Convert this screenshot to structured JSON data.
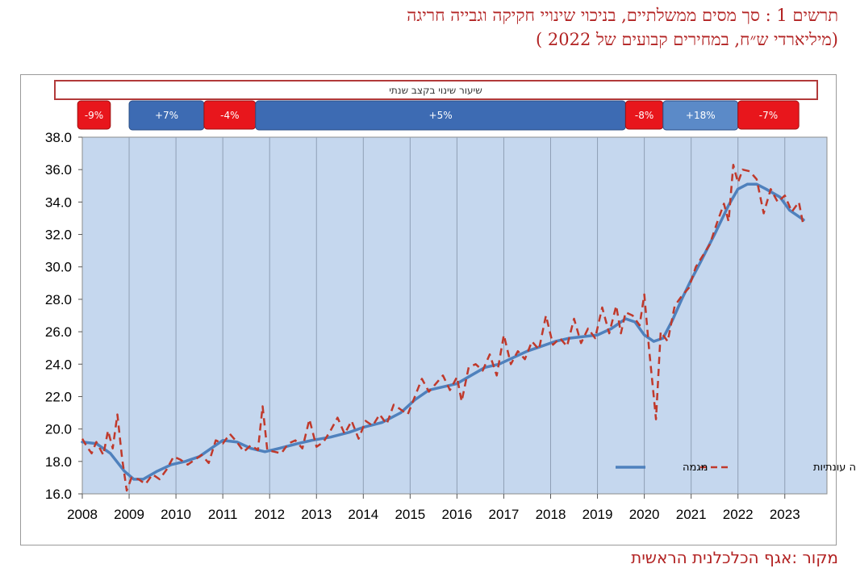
{
  "title_line1": "תרשים 1 : סך מסים ממשלתיים, בניכוי שינויי חקיקה וגבייה חריגה",
  "title_line2": "(מיליארדי ש״ח, במחירים קבועים של 2022 )",
  "source_text": "מקור :אגף הכלכלנית הראשית",
  "colors": {
    "plot_bg": "#c5d7ee",
    "trend": "#4f81bd",
    "seasonal": "#c0392b",
    "neg_box": "#e8161c",
    "pos_box": "#3d6bb3",
    "pos_box_light": "#5b8ac8",
    "title": "#b22222"
  },
  "chart_data": {
    "type": "line",
    "title": "",
    "xlabel": "",
    "ylabel": "",
    "ylim": [
      16.0,
      38.0
    ],
    "xlim": [
      2008,
      2023.9
    ],
    "x_ticks": [
      "2008",
      "2009",
      "2010",
      "2011",
      "2012",
      "2013",
      "2014",
      "2015",
      "2016",
      "2017",
      "2018",
      "2019",
      "2020",
      "2021",
      "2022",
      "2023"
    ],
    "y_ticks": [
      "16.0",
      "18.0",
      "20.0",
      "22.0",
      "24.0",
      "26.0",
      "28.0",
      "30.0",
      "32.0",
      "34.0",
      "36.0",
      "38.0"
    ],
    "grid": "vertical",
    "legend_position": "bottom-right",
    "legend": [
      {
        "name": "מנוכה עונתיות",
        "style": "dashed"
      },
      {
        "name": "מגמה",
        "style": "solid"
      }
    ],
    "band_title": "שיעור שינוי בקצב שנתי",
    "growth_bands": [
      {
        "label": "-9%",
        "start": 2007.9,
        "end": 2008.6,
        "sign": "neg"
      },
      {
        "label": "+7%",
        "start": 2009.0,
        "end": 2010.6,
        "sign": "pos"
      },
      {
        "label": "-4%",
        "start": 2010.6,
        "end": 2011.7,
        "sign": "neg"
      },
      {
        "label": "+5%",
        "start": 2011.7,
        "end": 2019.6,
        "sign": "pos"
      },
      {
        "label": "-8%",
        "start": 2019.6,
        "end": 2020.4,
        "sign": "neg"
      },
      {
        "label": "+18%",
        "start": 2020.4,
        "end": 2022.0,
        "sign": "pos_light"
      },
      {
        "label": "-7%",
        "start": 2022.0,
        "end": 2023.3,
        "sign": "neg"
      }
    ],
    "series": [
      {
        "name": "מגמה",
        "points": [
          [
            2008.0,
            19.2
          ],
          [
            2008.3,
            19.1
          ],
          [
            2008.6,
            18.5
          ],
          [
            2008.9,
            17.4
          ],
          [
            2009.1,
            16.9
          ],
          [
            2009.3,
            16.9
          ],
          [
            2009.6,
            17.4
          ],
          [
            2009.9,
            17.8
          ],
          [
            2010.2,
            18.0
          ],
          [
            2010.5,
            18.3
          ],
          [
            2010.8,
            18.9
          ],
          [
            2011.0,
            19.3
          ],
          [
            2011.3,
            19.2
          ],
          [
            2011.6,
            18.8
          ],
          [
            2011.9,
            18.6
          ],
          [
            2012.2,
            18.8
          ],
          [
            2012.6,
            19.1
          ],
          [
            2012.9,
            19.3
          ],
          [
            2013.3,
            19.5
          ],
          [
            2013.7,
            19.8
          ],
          [
            2014.0,
            20.1
          ],
          [
            2014.4,
            20.4
          ],
          [
            2014.8,
            21.0
          ],
          [
            2015.1,
            21.8
          ],
          [
            2015.4,
            22.4
          ],
          [
            2015.7,
            22.6
          ],
          [
            2016.0,
            22.8
          ],
          [
            2016.3,
            23.3
          ],
          [
            2016.6,
            23.8
          ],
          [
            2016.9,
            24.0
          ],
          [
            2017.2,
            24.4
          ],
          [
            2017.5,
            24.8
          ],
          [
            2017.8,
            25.1
          ],
          [
            2018.1,
            25.4
          ],
          [
            2018.4,
            25.6
          ],
          [
            2018.7,
            25.7
          ],
          [
            2019.0,
            25.8
          ],
          [
            2019.3,
            26.2
          ],
          [
            2019.6,
            26.8
          ],
          [
            2019.8,
            26.6
          ],
          [
            2020.0,
            25.8
          ],
          [
            2020.2,
            25.4
          ],
          [
            2020.4,
            25.6
          ],
          [
            2020.6,
            26.7
          ],
          [
            2020.8,
            28.0
          ],
          [
            2021.0,
            29.2
          ],
          [
            2021.2,
            30.3
          ],
          [
            2021.5,
            32.0
          ],
          [
            2021.8,
            33.8
          ],
          [
            2022.0,
            34.8
          ],
          [
            2022.2,
            35.1
          ],
          [
            2022.4,
            35.1
          ],
          [
            2022.6,
            34.8
          ],
          [
            2022.9,
            34.3
          ],
          [
            2023.1,
            33.5
          ],
          [
            2023.3,
            33.1
          ],
          [
            2023.4,
            32.9
          ]
        ]
      },
      {
        "name": "מנוכה עונתיות",
        "points": [
          [
            2008.0,
            19.4
          ],
          [
            2008.1,
            18.9
          ],
          [
            2008.2,
            18.5
          ],
          [
            2008.3,
            19.2
          ],
          [
            2008.45,
            18.4
          ],
          [
            2008.55,
            19.9
          ],
          [
            2008.65,
            18.8
          ],
          [
            2008.75,
            20.9
          ],
          [
            2008.85,
            18.2
          ],
          [
            2008.95,
            16.2
          ],
          [
            2009.05,
            17.0
          ],
          [
            2009.2,
            16.9
          ],
          [
            2009.35,
            16.6
          ],
          [
            2009.5,
            17.2
          ],
          [
            2009.65,
            16.9
          ],
          [
            2009.8,
            17.5
          ],
          [
            2009.95,
            18.3
          ],
          [
            2010.1,
            18.1
          ],
          [
            2010.25,
            17.8
          ],
          [
            2010.4,
            18.1
          ],
          [
            2010.55,
            18.4
          ],
          [
            2010.7,
            17.9
          ],
          [
            2010.85,
            19.3
          ],
          [
            2011.0,
            19.1
          ],
          [
            2011.15,
            19.7
          ],
          [
            2011.3,
            19.2
          ],
          [
            2011.45,
            18.6
          ],
          [
            2011.6,
            19.0
          ],
          [
            2011.75,
            18.7
          ],
          [
            2011.85,
            21.4
          ],
          [
            2011.95,
            18.7
          ],
          [
            2012.1,
            18.6
          ],
          [
            2012.25,
            18.5
          ],
          [
            2012.4,
            19.1
          ],
          [
            2012.55,
            19.3
          ],
          [
            2012.7,
            18.8
          ],
          [
            2012.85,
            20.6
          ],
          [
            2013.0,
            18.9
          ],
          [
            2013.15,
            19.2
          ],
          [
            2013.3,
            19.9
          ],
          [
            2013.45,
            20.7
          ],
          [
            2013.6,
            19.7
          ],
          [
            2013.75,
            20.5
          ],
          [
            2013.9,
            19.4
          ],
          [
            2014.05,
            20.5
          ],
          [
            2014.2,
            20.2
          ],
          [
            2014.35,
            20.9
          ],
          [
            2014.5,
            20.3
          ],
          [
            2014.65,
            21.5
          ],
          [
            2014.8,
            21.2
          ],
          [
            2014.95,
            20.9
          ],
          [
            2015.1,
            22.0
          ],
          [
            2015.25,
            23.1
          ],
          [
            2015.4,
            22.3
          ],
          [
            2015.55,
            22.8
          ],
          [
            2015.7,
            23.3
          ],
          [
            2015.85,
            22.4
          ],
          [
            2016.0,
            23.2
          ],
          [
            2016.1,
            21.7
          ],
          [
            2016.25,
            23.8
          ],
          [
            2016.4,
            24.0
          ],
          [
            2016.55,
            23.6
          ],
          [
            2016.7,
            24.6
          ],
          [
            2016.85,
            23.3
          ],
          [
            2017.0,
            25.8
          ],
          [
            2017.15,
            24.0
          ],
          [
            2017.3,
            24.8
          ],
          [
            2017.45,
            24.3
          ],
          [
            2017.6,
            25.4
          ],
          [
            2017.75,
            24.9
          ],
          [
            2017.9,
            27.0
          ],
          [
            2018.05,
            25.2
          ],
          [
            2018.2,
            25.6
          ],
          [
            2018.35,
            25.1
          ],
          [
            2018.5,
            26.8
          ],
          [
            2018.65,
            25.3
          ],
          [
            2018.8,
            26.2
          ],
          [
            2018.95,
            25.6
          ],
          [
            2019.1,
            27.5
          ],
          [
            2019.25,
            25.9
          ],
          [
            2019.4,
            27.6
          ],
          [
            2019.5,
            25.9
          ],
          [
            2019.6,
            27.2
          ],
          [
            2019.75,
            27.0
          ],
          [
            2019.9,
            26.4
          ],
          [
            2020.0,
            28.3
          ],
          [
            2020.1,
            25.0
          ],
          [
            2020.25,
            20.6
          ],
          [
            2020.35,
            26.0
          ],
          [
            2020.5,
            25.4
          ],
          [
            2020.65,
            27.6
          ],
          [
            2020.8,
            28.2
          ],
          [
            2020.95,
            28.7
          ],
          [
            2021.1,
            30.0
          ],
          [
            2021.25,
            30.7
          ],
          [
            2021.4,
            31.4
          ],
          [
            2021.55,
            32.7
          ],
          [
            2021.7,
            33.9
          ],
          [
            2021.8,
            32.8
          ],
          [
            2021.9,
            36.3
          ],
          [
            2022.0,
            35.2
          ],
          [
            2022.1,
            36.0
          ],
          [
            2022.25,
            35.9
          ],
          [
            2022.4,
            35.4
          ],
          [
            2022.55,
            33.3
          ],
          [
            2022.7,
            34.8
          ],
          [
            2022.85,
            34.0
          ],
          [
            2023.0,
            34.4
          ],
          [
            2023.15,
            33.4
          ],
          [
            2023.3,
            34.0
          ],
          [
            2023.4,
            32.5
          ]
        ]
      }
    ]
  }
}
